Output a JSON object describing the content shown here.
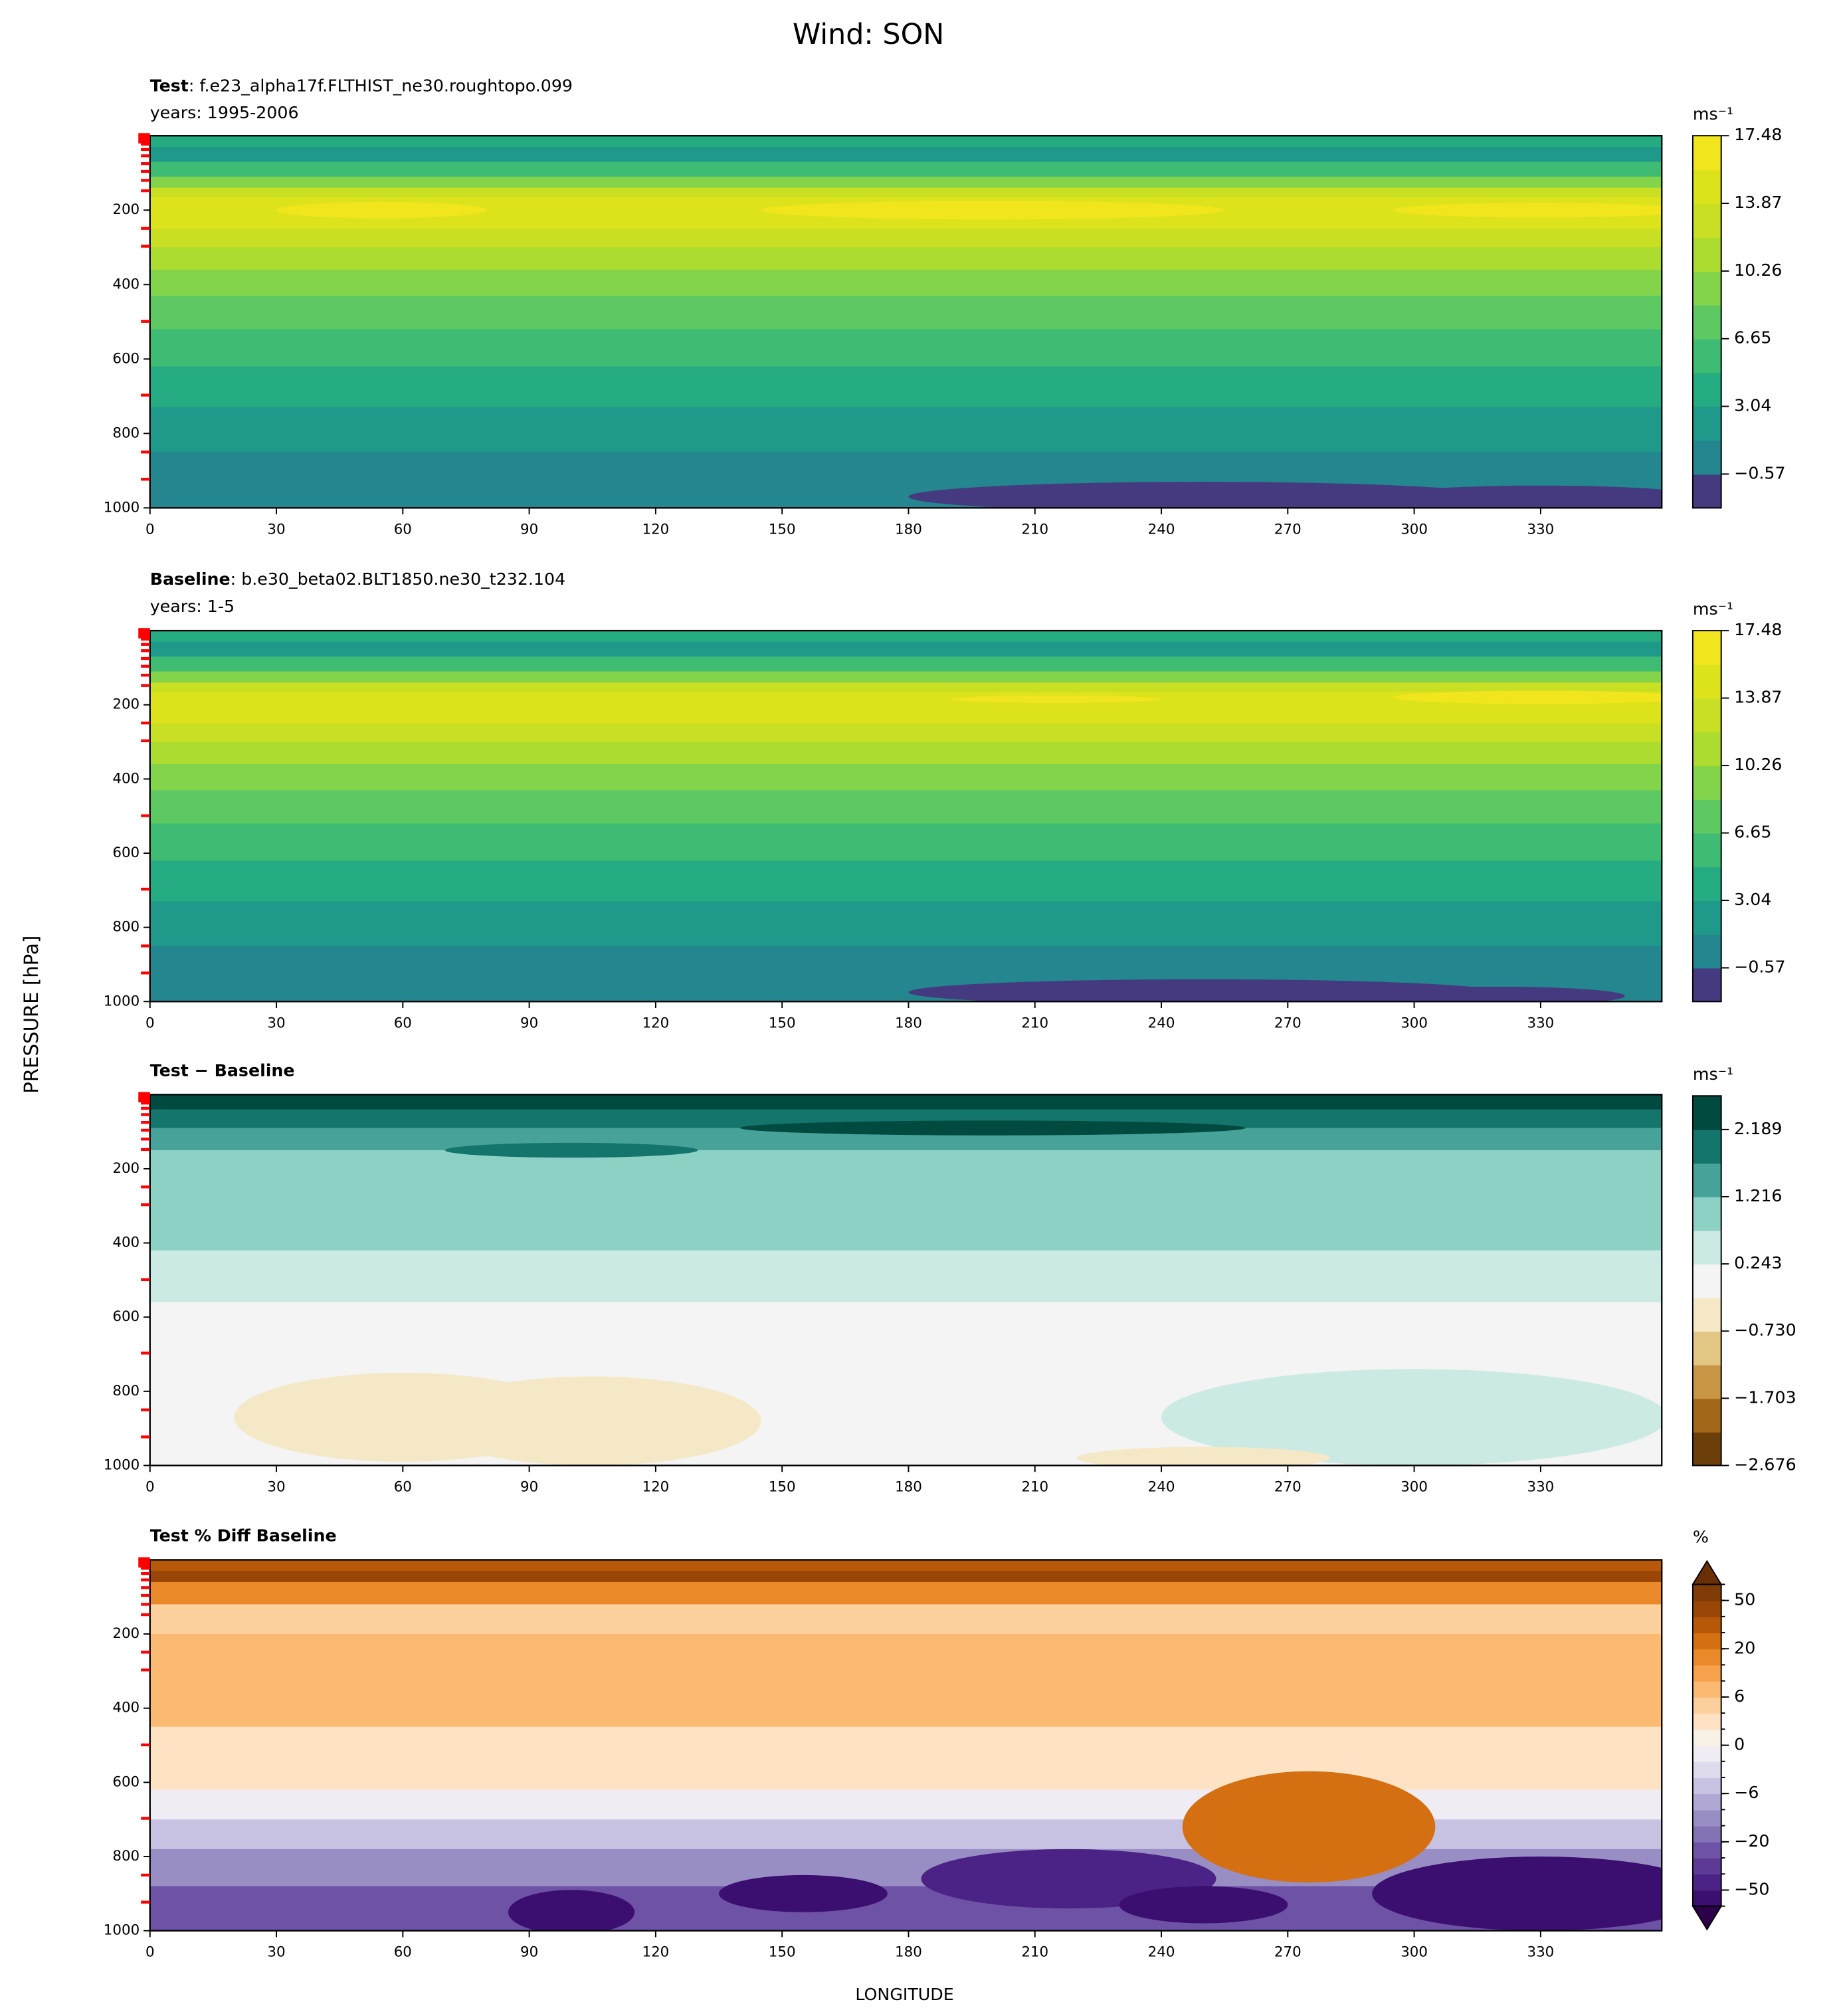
{
  "title": "Wind: SON",
  "ylabel": "PRESSURE [hPa]",
  "xlabel": "LONGITUDE",
  "chart_data": [
    {
      "type": "contour",
      "label": "Test",
      "case": ": f.e23_alpha17f.FLTHIST_ne30.roughtopo.099",
      "years": "years: 1995-2006",
      "xlim": [
        0,
        358.75
      ],
      "xticks": [
        0,
        30,
        60,
        90,
        120,
        150,
        180,
        210,
        240,
        270,
        300,
        330
      ],
      "ylim": [
        1000,
        0
      ],
      "yticks": [
        200,
        400,
        600,
        800,
        1000
      ],
      "yminor": [
        9,
        23,
        37,
        54,
        75,
        96,
        120,
        148,
        249,
        297,
        499,
        697,
        850,
        923
      ],
      "yminor_color": "#ff0000",
      "units": "ms⁻¹",
      "clim": [
        -2.375,
        17.48
      ],
      "cticks": [
        {
          "value": -0.57,
          "label": "−0.57"
        },
        3.04,
        6.65,
        10.26,
        13.87,
        17.48
      ],
      "colors": [
        "#45397f",
        "#24868e",
        "#1f998a",
        "#25ab82",
        "#3ebc74",
        "#5ec962",
        "#84d44b",
        "#addc30",
        "#c9df23",
        "#dde31a",
        "#f1e51d"
      ]
    },
    {
      "type": "contour",
      "label": "Baseline",
      "case": ": b.e30_beta02.BLT1850.ne30_t232.104",
      "years": "years: 1-5",
      "xlim": [
        0,
        358.75
      ],
      "xticks": [
        0,
        30,
        60,
        90,
        120,
        150,
        180,
        210,
        240,
        270,
        300,
        330
      ],
      "ylim": [
        1000,
        0
      ],
      "yticks": [
        200,
        400,
        600,
        800,
        1000
      ],
      "yminor": [
        9,
        23,
        37,
        54,
        75,
        96,
        120,
        148,
        249,
        297,
        499,
        697,
        850,
        923
      ],
      "yminor_color": "#ff0000",
      "units": "ms⁻¹",
      "clim": [
        -2.375,
        17.48
      ],
      "cticks": [
        {
          "value": -0.57,
          "label": "−0.57"
        },
        3.04,
        6.65,
        10.26,
        13.87,
        17.48
      ],
      "colors": [
        "#45397f",
        "#24868e",
        "#1f998a",
        "#25ab82",
        "#3ebc74",
        "#5ec962",
        "#84d44b",
        "#addc30",
        "#c9df23",
        "#dde31a",
        "#f1e51d"
      ]
    },
    {
      "type": "contour",
      "label": "Test − Baseline",
      "xlim": [
        0,
        358.75
      ],
      "xticks": [
        0,
        30,
        60,
        90,
        120,
        150,
        180,
        210,
        240,
        270,
        300,
        330
      ],
      "ylim": [
        1000,
        0
      ],
      "yticks": [
        200,
        400,
        600,
        800,
        1000
      ],
      "yminor": [
        9,
        23,
        37,
        54,
        75,
        96,
        120,
        148,
        249,
        297,
        499,
        697,
        850,
        923
      ],
      "yminor_color": "#ff0000",
      "units": "ms⁻¹",
      "clim": [
        -2.676,
        2.676
      ],
      "cticks": [
        {
          "value": -2.676,
          "label": "−2.676"
        },
        {
          "value": -1.703,
          "label": "−1.703"
        },
        {
          "value": -0.73,
          "label": "−0.730"
        },
        0.243,
        1.216,
        2.189
      ],
      "colors": [
        "#6c3e0a",
        "#a16617",
        "#c89544",
        "#e2c683",
        "#f5e8c6",
        "#f3f4f3",
        "#cceae4",
        "#8dd0c4",
        "#47a399",
        "#14756d",
        "#014a40"
      ]
    },
    {
      "type": "contour",
      "label": "Test % Diff Baseline",
      "xlim": [
        0,
        358.75
      ],
      "xticks": [
        0,
        30,
        60,
        90,
        120,
        150,
        180,
        210,
        240,
        270,
        300,
        330
      ],
      "ylim": [
        1000,
        0
      ],
      "yticks": [
        200,
        400,
        600,
        800,
        1000
      ],
      "yminor": [
        9,
        23,
        37,
        54,
        75,
        96,
        120,
        148,
        249,
        297,
        499,
        697,
        850,
        923
      ],
      "yminor_color": "#ff0000",
      "units": "%",
      "levels": [
        -75,
        -50,
        -40,
        -30,
        -20,
        -15,
        -10,
        -6,
        -4,
        -2,
        0,
        2,
        4,
        6,
        10,
        15,
        20,
        30,
        40,
        50,
        75
      ],
      "extend": "both",
      "cticks": [
        {
          "value": -50,
          "label": "−50"
        },
        {
          "value": -20,
          "label": "−20"
        },
        {
          "value": -6,
          "label": "−6"
        },
        0,
        6,
        20,
        50
      ],
      "colors": [
        "#3b0f6f",
        "#4b2386",
        "#5c3a96",
        "#6e52a5",
        "#8373b5",
        "#998ec4",
        "#b0a8d3",
        "#c7c2e2",
        "#dddaec",
        "#efedf3",
        "#f8f1e6",
        "#fde3c3",
        "#fcd09c",
        "#fbba72",
        "#f6a24c",
        "#ea8929",
        "#d46f12",
        "#b85809",
        "#9a4607",
        "#7f3b08"
      ],
      "extend_colors": [
        "#2d004b",
        "#6b2f06"
      ]
    }
  ]
}
